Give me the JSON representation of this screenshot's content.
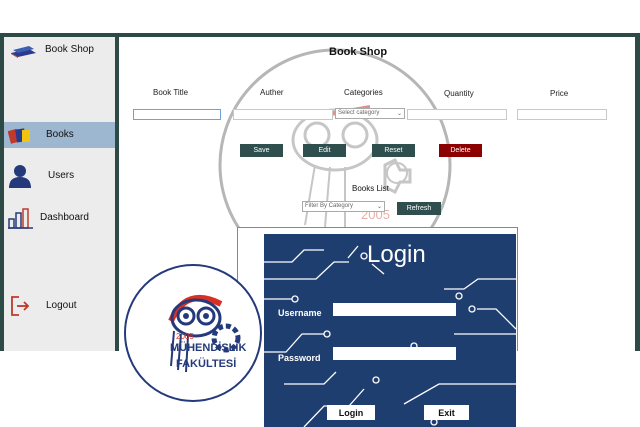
{
  "app": {
    "title": "Book Shop"
  },
  "sidebar": {
    "items": [
      {
        "label": "Books"
      },
      {
        "label": "Users"
      },
      {
        "label": "Dashboard"
      },
      {
        "label": "Logout"
      }
    ]
  },
  "main": {
    "title": "Book Shop",
    "fields": {
      "book_title": "Book Title",
      "author": "Auther",
      "categories": "Categories",
      "quantity": "Quantity",
      "price": "Price"
    },
    "category_select": "Select category",
    "buttons": {
      "save": "Save",
      "edit": "Edit",
      "reset": "Reset",
      "delete": "Delete"
    },
    "list_title": "Books List",
    "filter_select": "Filter By Category",
    "refresh": "Refresh",
    "watermark_year": "2005"
  },
  "logo": {
    "year": "2005",
    "line1": "MÜHENDİSLİK",
    "line2": "FAKÜLTESİ"
  },
  "login": {
    "title": "Login",
    "username_label": "Username",
    "password_label": "Password",
    "login_button": "Login",
    "exit_button": "Exit"
  },
  "colors": {
    "frame": "#2e4a47",
    "active": "#9db7d0",
    "button": "#2f4f4f",
    "delete": "#8b0000",
    "login_bg": "#1f3e70"
  },
  "icons": [
    "book-icon",
    "books-icon",
    "user-icon",
    "bar-chart-icon",
    "logout-icon"
  ]
}
